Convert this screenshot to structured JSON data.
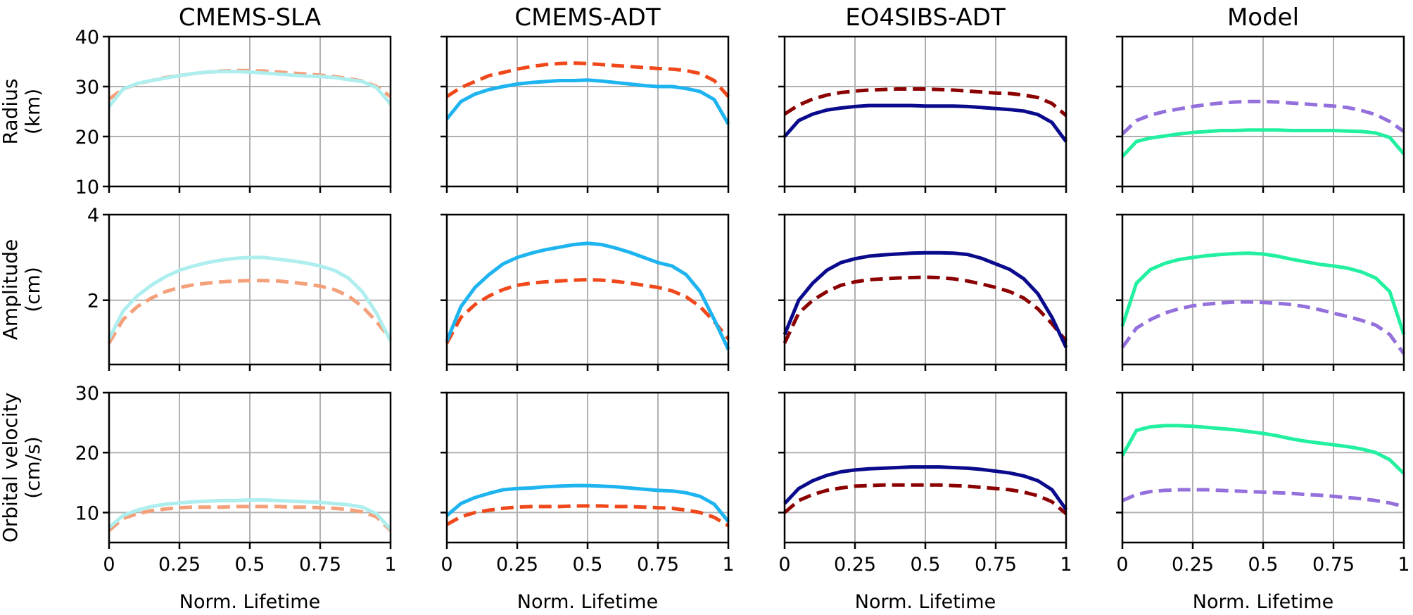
{
  "chart_data": {
    "type": "line",
    "layout": "3 rows x 4 columns",
    "columns": [
      "CMEMS-SLA",
      "CMEMS-ADT",
      "EO4SIBS-ADT",
      "Model"
    ],
    "row_labels": [
      {
        "line1": "Radius",
        "line2": "(km)"
      },
      {
        "line1": "Amplitude",
        "line2": "(cm)"
      },
      {
        "line1": "Orbital velocity",
        "line2": "(cm/s)"
      }
    ],
    "xlabel": "Norm. Lifetime",
    "xlim": [
      0,
      1
    ],
    "xticks": [
      0,
      0.25,
      0.5,
      0.75,
      1
    ],
    "xtick_labels": [
      "0",
      "0.25",
      "0.5",
      "0.75",
      "1"
    ],
    "rows": [
      {
        "ylim": [
          10,
          40
        ],
        "yticks": [
          10,
          20,
          30,
          40
        ],
        "ytick_labels": [
          "10",
          "20",
          "30",
          "40"
        ]
      },
      {
        "ylim": [
          0.5,
          4
        ],
        "yticks": [
          2,
          4
        ],
        "ytick_labels": [
          "2",
          "4"
        ]
      },
      {
        "ylim": [
          5,
          30
        ],
        "yticks": [
          10,
          20,
          30
        ],
        "ytick_labels": [
          "10",
          "20",
          "30"
        ]
      }
    ],
    "series_colors": [
      {
        "solid": "#aeeeee",
        "dashed": "#f4a07a"
      },
      {
        "solid": "#1eb4f0",
        "dashed": "#f0481a"
      },
      {
        "solid": "#0a0a8c",
        "dashed": "#8b0000"
      },
      {
        "solid": "#22f0a0",
        "dashed": "#9370db"
      }
    ],
    "x": [
      0,
      0.05,
      0.1,
      0.15,
      0.2,
      0.25,
      0.3,
      0.35,
      0.4,
      0.45,
      0.5,
      0.55,
      0.6,
      0.65,
      0.7,
      0.75,
      0.8,
      0.85,
      0.9,
      0.95,
      1
    ],
    "panels": [
      [
        {
          "solid": [
            26,
            29.5,
            30.6,
            31.2,
            31.7,
            32.2,
            32.6,
            32.9,
            33.0,
            33.0,
            32.9,
            32.7,
            32.5,
            32.3,
            32.1,
            32.0,
            31.8,
            31.4,
            31.0,
            29.8,
            26.5
          ],
          "dashed": [
            27.5,
            29.5,
            30.5,
            31.2,
            31.8,
            32.2,
            32.6,
            32.9,
            33.1,
            33.2,
            33.2,
            33.1,
            32.9,
            32.7,
            32.5,
            32.3,
            32.0,
            31.6,
            31.1,
            30.0,
            28.0
          ]
        },
        {
          "solid": [
            23.5,
            27.0,
            28.5,
            29.4,
            30.0,
            30.5,
            30.8,
            31.0,
            31.2,
            31.2,
            31.3,
            31.1,
            30.8,
            30.5,
            30.2,
            30.0,
            30.0,
            29.6,
            29.0,
            27.4,
            22.5
          ],
          "dashed": [
            28.0,
            29.8,
            31.0,
            32.2,
            32.8,
            33.5,
            34.0,
            34.4,
            34.6,
            34.7,
            34.6,
            34.4,
            34.2,
            34.0,
            33.8,
            33.6,
            33.5,
            33.2,
            32.6,
            31.2,
            28.0
          ]
        },
        {
          "solid": [
            20.0,
            23.2,
            24.5,
            25.3,
            25.7,
            26.0,
            26.2,
            26.2,
            26.2,
            26.2,
            26.1,
            26.1,
            26.1,
            26.0,
            25.8,
            25.6,
            25.4,
            25.1,
            24.4,
            22.8,
            19.0
          ],
          "dashed": [
            24.5,
            26.3,
            27.5,
            28.3,
            28.8,
            29.1,
            29.3,
            29.4,
            29.5,
            29.5,
            29.5,
            29.4,
            29.3,
            29.1,
            28.9,
            28.7,
            28.6,
            28.3,
            27.8,
            26.6,
            24.2
          ]
        },
        {
          "solid": [
            16.0,
            19.0,
            19.7,
            20.1,
            20.5,
            20.8,
            21.0,
            21.2,
            21.2,
            21.3,
            21.3,
            21.3,
            21.2,
            21.2,
            21.2,
            21.2,
            21.1,
            21.0,
            20.7,
            19.8,
            16.5
          ],
          "dashed": [
            20.5,
            23.2,
            24.3,
            25.0,
            25.5,
            26.0,
            26.4,
            26.7,
            26.9,
            27.0,
            27.0,
            26.9,
            26.7,
            26.5,
            26.3,
            26.1,
            25.8,
            25.2,
            24.4,
            23.0,
            21.0
          ]
        }
      ],
      [
        {
          "solid": [
            1.1,
            1.75,
            2.1,
            2.35,
            2.55,
            2.7,
            2.8,
            2.88,
            2.94,
            2.98,
            3.0,
            3.0,
            2.96,
            2.92,
            2.87,
            2.8,
            2.7,
            2.52,
            2.2,
            1.7,
            1.05
          ],
          "dashed": [
            1.0,
            1.55,
            1.85,
            2.05,
            2.2,
            2.3,
            2.36,
            2.4,
            2.43,
            2.45,
            2.46,
            2.46,
            2.45,
            2.42,
            2.38,
            2.33,
            2.25,
            2.1,
            1.85,
            1.5,
            1.1
          ]
        },
        {
          "solid": [
            1.05,
            1.85,
            2.3,
            2.6,
            2.85,
            3.0,
            3.1,
            3.18,
            3.24,
            3.3,
            3.33,
            3.3,
            3.22,
            3.12,
            3.0,
            2.88,
            2.8,
            2.6,
            2.2,
            1.55,
            0.85
          ],
          "dashed": [
            1.0,
            1.6,
            1.9,
            2.1,
            2.25,
            2.35,
            2.4,
            2.43,
            2.45,
            2.47,
            2.48,
            2.47,
            2.44,
            2.4,
            2.35,
            2.3,
            2.22,
            2.08,
            1.85,
            1.5,
            1.1
          ]
        },
        {
          "solid": [
            1.2,
            2.0,
            2.4,
            2.7,
            2.88,
            2.97,
            3.03,
            3.06,
            3.08,
            3.1,
            3.11,
            3.11,
            3.1,
            3.07,
            2.98,
            2.85,
            2.72,
            2.5,
            2.15,
            1.6,
            0.9
          ],
          "dashed": [
            1.0,
            1.7,
            2.0,
            2.2,
            2.35,
            2.43,
            2.48,
            2.5,
            2.52,
            2.53,
            2.54,
            2.53,
            2.5,
            2.45,
            2.38,
            2.3,
            2.2,
            2.05,
            1.8,
            1.45,
            1.05
          ]
        },
        {
          "solid": [
            1.4,
            2.4,
            2.72,
            2.86,
            2.95,
            3.0,
            3.04,
            3.07,
            3.09,
            3.1,
            3.08,
            3.03,
            2.96,
            2.9,
            2.84,
            2.8,
            2.75,
            2.66,
            2.52,
            2.2,
            1.2
          ],
          "dashed": [
            0.9,
            1.35,
            1.55,
            1.7,
            1.8,
            1.87,
            1.91,
            1.94,
            1.96,
            1.96,
            1.95,
            1.93,
            1.9,
            1.85,
            1.78,
            1.7,
            1.62,
            1.53,
            1.42,
            1.2,
            0.75
          ]
        }
      ],
      [
        {
          "solid": [
            7.5,
            9.5,
            10.4,
            11.0,
            11.4,
            11.6,
            11.8,
            11.9,
            12.0,
            12.0,
            12.1,
            12.1,
            12.0,
            11.9,
            11.8,
            11.7,
            11.5,
            11.3,
            10.9,
            9.8,
            7.2
          ],
          "dashed": [
            7.0,
            9.0,
            9.8,
            10.3,
            10.6,
            10.8,
            10.9,
            10.9,
            10.9,
            11.0,
            11.0,
            11.0,
            11.0,
            10.9,
            10.9,
            10.8,
            10.7,
            10.5,
            10.1,
            9.3,
            7.0
          ]
        },
        {
          "solid": [
            9.5,
            11.5,
            12.5,
            13.2,
            13.8,
            14.0,
            14.1,
            14.3,
            14.4,
            14.5,
            14.5,
            14.4,
            14.3,
            14.1,
            13.9,
            13.7,
            13.6,
            13.3,
            12.7,
            11.4,
            8.5
          ],
          "dashed": [
            8.0,
            9.3,
            10.0,
            10.4,
            10.7,
            10.9,
            11.0,
            11.0,
            11.0,
            11.1,
            11.1,
            11.1,
            11.0,
            11.0,
            10.9,
            10.8,
            10.7,
            10.4,
            10.0,
            9.2,
            7.8
          ]
        },
        {
          "solid": [
            11.5,
            14.0,
            15.3,
            16.2,
            16.8,
            17.1,
            17.3,
            17.4,
            17.5,
            17.6,
            17.6,
            17.6,
            17.5,
            17.4,
            17.2,
            16.9,
            16.6,
            16.1,
            15.3,
            13.8,
            10.5
          ],
          "dashed": [
            10.0,
            12.0,
            13.0,
            13.7,
            14.1,
            14.4,
            14.5,
            14.6,
            14.6,
            14.6,
            14.6,
            14.6,
            14.5,
            14.4,
            14.2,
            14.0,
            13.8,
            13.4,
            12.8,
            11.8,
            9.8
          ]
        },
        {
          "solid": [
            19.5,
            23.7,
            24.3,
            24.5,
            24.5,
            24.4,
            24.2,
            24.0,
            23.8,
            23.5,
            23.2,
            22.8,
            22.3,
            21.9,
            21.6,
            21.3,
            21.0,
            20.6,
            20.0,
            18.8,
            16.5
          ],
          "dashed": [
            12.0,
            13.0,
            13.5,
            13.7,
            13.8,
            13.8,
            13.8,
            13.7,
            13.6,
            13.5,
            13.4,
            13.3,
            13.2,
            13.0,
            12.9,
            12.7,
            12.5,
            12.3,
            12.0,
            11.6,
            11.0
          ]
        }
      ]
    ]
  }
}
